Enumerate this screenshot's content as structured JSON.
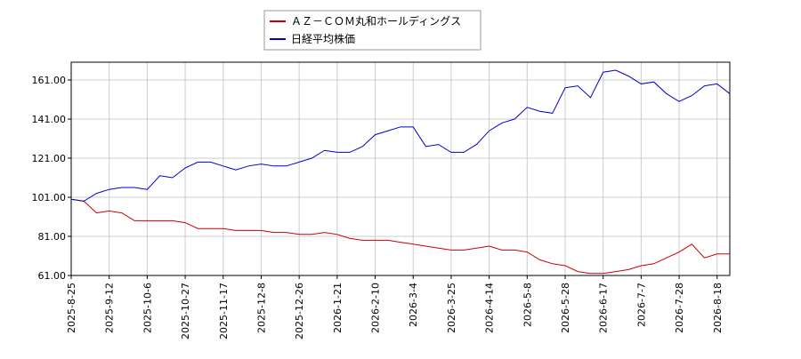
{
  "chart_data": {
    "type": "line",
    "categories": [
      "2025-8-25",
      null,
      null,
      "2025-9-12",
      null,
      null,
      "2025-10-6",
      null,
      null,
      "2025-10-27",
      null,
      null,
      "2025-11-17",
      null,
      null,
      "2025-12-8",
      null,
      null,
      "2025-12-26",
      null,
      null,
      "2026-1-21",
      null,
      null,
      "2026-2-10",
      null,
      null,
      "2026-3-4",
      null,
      null,
      "2026-3-25",
      null,
      null,
      "2026-4-14",
      null,
      null,
      "2026-5-8",
      null,
      null,
      "2026-5-28",
      null,
      null,
      "2026-6-17",
      null,
      null,
      "2026-7-7",
      null,
      null,
      "2026-7-28",
      null,
      null,
      "2026-8-18",
      null
    ],
    "series": [
      {
        "name": "ＡＺ－ＣＯＭ丸和ホールディングス",
        "color": "#cc0000",
        "values": [
          100,
          99,
          93,
          94,
          93,
          89,
          89,
          89,
          89,
          88,
          85,
          85,
          85,
          84,
          84,
          84,
          83,
          83,
          82,
          82,
          83,
          82,
          80,
          79,
          79,
          79,
          78,
          77,
          76,
          75,
          74,
          74,
          75,
          76,
          74,
          74,
          73,
          69,
          67,
          66,
          63,
          62,
          62,
          63,
          64,
          66,
          67,
          70,
          73,
          77,
          70,
          72,
          72
        ]
      },
      {
        "name": "日経平均株価",
        "color": "#0000cc",
        "values": [
          100,
          99,
          103,
          105,
          106,
          106,
          105,
          112,
          111,
          116,
          119,
          119,
          117,
          115,
          117,
          118,
          117,
          117,
          119,
          121,
          125,
          124,
          124,
          127,
          133,
          135,
          137,
          137,
          127,
          128,
          124,
          124,
          128,
          135,
          139,
          141,
          147,
          145,
          144,
          157,
          158,
          152,
          165,
          166,
          163,
          159,
          160,
          154,
          150,
          153,
          158,
          159,
          154
        ]
      }
    ],
    "ylim": [
      61,
      170.1
    ],
    "yticks": [
      {
        "value": 61,
        "label": "61.00"
      },
      {
        "value": 81,
        "label": "81.00"
      },
      {
        "value": 101,
        "label": "101.00"
      },
      {
        "value": 121,
        "label": "121.00"
      },
      {
        "value": 141,
        "label": "141.00"
      },
      {
        "value": 161,
        "label": "161.00"
      }
    ],
    "grid": true
  }
}
